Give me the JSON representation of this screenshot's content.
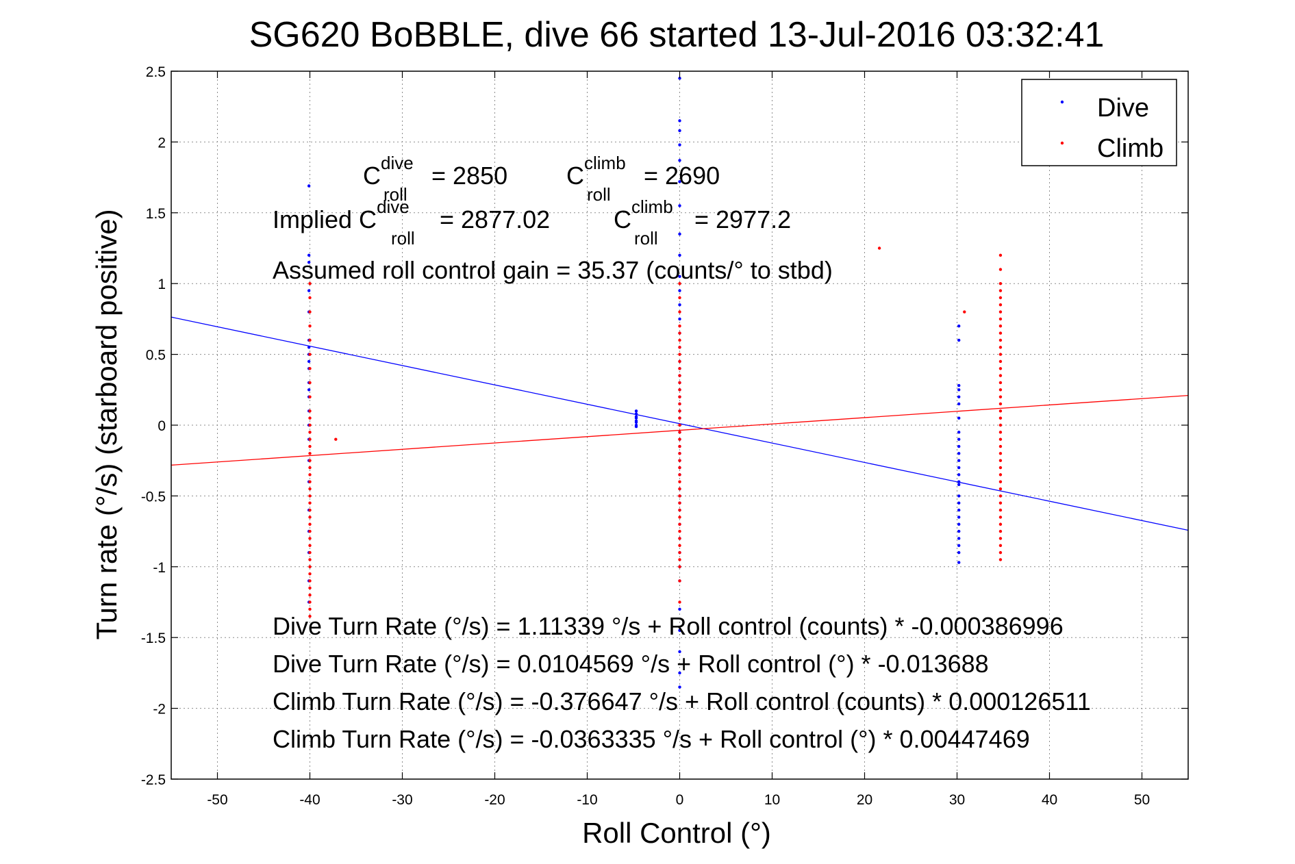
{
  "chart_data": {
    "type": "scatter",
    "title": "SG620 BoBBLE, dive 66 started 13-Jul-2016 03:32:41",
    "xlabel": "Roll Control (°)",
    "ylabel": "Turn rate (°/s) (starboard positive)",
    "xlim": [
      -55,
      55
    ],
    "ylim": [
      -2.5,
      2.5
    ],
    "xticks": [
      -50,
      -40,
      -30,
      -20,
      -10,
      0,
      10,
      20,
      30,
      40,
      50
    ],
    "yticks": [
      2.5,
      2,
      1.5,
      1,
      0.5,
      0,
      -0.5,
      -1,
      -1.5,
      -2,
      -2.5
    ],
    "xtick_labels": [
      "-50",
      "-40",
      "-30",
      "-20",
      "-10",
      "0",
      "10",
      "20",
      "30",
      "40",
      "50"
    ],
    "ytick_labels": [
      "2.5",
      "2",
      "1.5",
      "1",
      "0.5",
      "0",
      "-0.5",
      "-1",
      "-1.5",
      "-2",
      "-2.5"
    ],
    "grid": true,
    "legend": {
      "position": "top-right",
      "entries": [
        "Dive",
        "Climb"
      ]
    },
    "colors": {
      "dive": "#0000ff",
      "climb": "#ff0000"
    },
    "series": [
      {
        "name": "Dive",
        "color": "#0000ff",
        "clusters": [
          {
            "x": -40.1,
            "y_values": [
              1.69,
              1.2,
              1.15,
              0.95,
              0.8,
              0.6,
              0.55,
              0.5,
              0.45,
              0.4,
              0.3,
              0.25,
              0.2,
              0.1,
              0.0,
              -0.1,
              -0.25,
              -0.4,
              -0.6,
              -0.75,
              -0.9,
              -1.1,
              -1.25
            ]
          },
          {
            "x": -4.7,
            "y_values": [
              0.1,
              0.08,
              0.06,
              0.05,
              0.03,
              0.02,
              0.0,
              -0.01
            ]
          },
          {
            "x": 0.0,
            "y_values": [
              2.45,
              2.15,
              2.08,
              1.98,
              1.87,
              1.72,
              1.55,
              1.35,
              1.2,
              1.05,
              0.95,
              0.85,
              0.75,
              0.65,
              0.55,
              0.45,
              0.4,
              0.35,
              0.3,
              0.25,
              0.2,
              0.15,
              0.1,
              0.05,
              0.0,
              -0.05,
              -0.1,
              -0.15,
              -0.2,
              -0.25,
              -0.3,
              -0.35,
              -0.45,
              -0.5,
              -0.55,
              -0.6,
              -0.7,
              -0.8,
              -0.9,
              -1.0,
              -1.1,
              -1.3,
              -1.45,
              -1.6,
              -1.75,
              -1.85
            ]
          },
          {
            "x": 30.2,
            "y_values": [
              0.7,
              0.6,
              0.28,
              0.25,
              0.2,
              0.15,
              0.05,
              -0.05,
              -0.1,
              -0.15,
              -0.2,
              -0.25,
              -0.3,
              -0.35,
              -0.4,
              -0.42,
              -0.5,
              -0.55,
              -0.6,
              -0.65,
              -0.7,
              -0.75,
              -0.8,
              -0.85,
              -0.9,
              -0.97
            ]
          }
        ]
      },
      {
        "name": "Climb",
        "color": "#ff0000",
        "clusters": [
          {
            "x": -40.0,
            "y_values": [
              1.0,
              0.9,
              0.8,
              0.7,
              0.6,
              0.5,
              0.4,
              0.3,
              0.2,
              0.1,
              0.05,
              0.0,
              -0.05,
              -0.1,
              -0.15,
              -0.2,
              -0.25,
              -0.3,
              -0.35,
              -0.4,
              -0.45,
              -0.5,
              -0.55,
              -0.6,
              -0.65,
              -0.7,
              -0.75,
              -0.8,
              -0.85,
              -0.9,
              -0.95,
              -1.0,
              -1.05,
              -1.1,
              -1.15,
              -1.2,
              -1.25,
              -1.3,
              -1.35
            ]
          },
          {
            "x": -37.2,
            "y_values": [
              -0.1
            ]
          },
          {
            "x": 0.0,
            "y_values": [
              1.0,
              0.9,
              0.8,
              0.7,
              0.65,
              0.6,
              0.55,
              0.5,
              0.45,
              0.4,
              0.35,
              0.3,
              0.25,
              0.2,
              0.15,
              0.1,
              0.05,
              0.0,
              -0.05,
              -0.1,
              -0.15,
              -0.2,
              -0.25,
              -0.3,
              -0.35,
              -0.4,
              -0.45,
              -0.5,
              -0.55,
              -0.6,
              -0.65,
              -0.7,
              -0.75,
              -0.8,
              -0.85,
              -0.9,
              -0.95,
              -1.0,
              -1.1,
              -1.25
            ]
          },
          {
            "x": 21.6,
            "y_values": [
              1.25
            ]
          },
          {
            "x": 30.8,
            "y_values": [
              0.8
            ]
          },
          {
            "x": 34.7,
            "y_values": [
              1.2,
              1.1,
              1.0,
              0.95,
              0.9,
              0.85,
              0.8,
              0.75,
              0.7,
              0.65,
              0.6,
              0.55,
              0.5,
              0.45,
              0.4,
              0.35,
              0.3,
              0.25,
              0.2,
              0.15,
              0.1,
              0.05,
              0.0,
              -0.05,
              -0.1,
              -0.15,
              -0.2,
              -0.25,
              -0.3,
              -0.35,
              -0.4,
              -0.45,
              -0.5,
              -0.55,
              -0.6,
              -0.65,
              -0.7,
              -0.75,
              -0.8,
              -0.85,
              -0.9,
              -0.95
            ]
          }
        ]
      }
    ],
    "fit_lines": [
      {
        "series": "Dive",
        "color": "#0000ff",
        "intercept": 0.0104569,
        "slope": -0.013688
      },
      {
        "series": "Climb",
        "color": "#ff0000",
        "intercept": -0.0363335,
        "slope": 0.00447469
      }
    ],
    "annotations": {
      "c_dive": {
        "prefix": "C",
        "sup": "dive",
        "sub": "roll",
        "value": " = 2850"
      },
      "c_climb": {
        "prefix": "C",
        "sup": "climb",
        "sub": "roll",
        "value": " = 2690"
      },
      "implied_dive": {
        "prefix": "Implied C",
        "sup": "dive",
        "sub": "roll",
        "value": " = 2877.02"
      },
      "implied_climb": {
        "prefix": "C",
        "sup": "climb",
        "sub": "roll",
        "value": " = 2977.2"
      },
      "gain": "Assumed roll control gain = 35.37 (counts/° to stbd)",
      "equations": [
        "Dive Turn Rate (°/s) = 1.11339 °/s + Roll control (counts) * -0.000386996",
        "Dive Turn Rate (°/s) = 0.0104569 °/s + Roll control (°) * -0.013688",
        "Climb Turn Rate (°/s) = -0.376647 °/s + Roll control (counts) * 0.000126511",
        "Climb Turn Rate (°/s) = -0.0363335 °/s + Roll control (°) * 0.00447469"
      ]
    }
  }
}
